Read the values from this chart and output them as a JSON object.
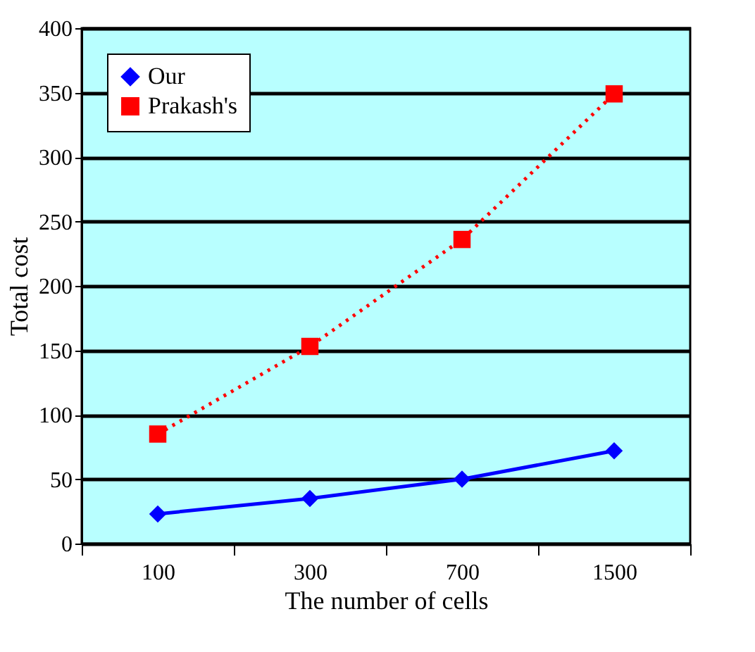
{
  "chart_data": {
    "type": "line",
    "xlabel": "The number of cells",
    "ylabel": "Total cost",
    "categories": [
      "100",
      "300",
      "700",
      "1500"
    ],
    "series": [
      {
        "name": "Our",
        "color": "#0000ff",
        "values": [
          23,
          35,
          50,
          72
        ],
        "marker": "diamond",
        "line_style": "solid"
      },
      {
        "name": "Prakash's",
        "color": "#ff0000",
        "values": [
          85,
          153,
          236,
          349
        ],
        "marker": "square",
        "line_style": "dotted"
      }
    ],
    "ylim": [
      0,
      400
    ],
    "yticks": [
      0,
      50,
      100,
      150,
      200,
      250,
      300,
      350,
      400
    ],
    "grid": "y",
    "legend": "top left"
  }
}
